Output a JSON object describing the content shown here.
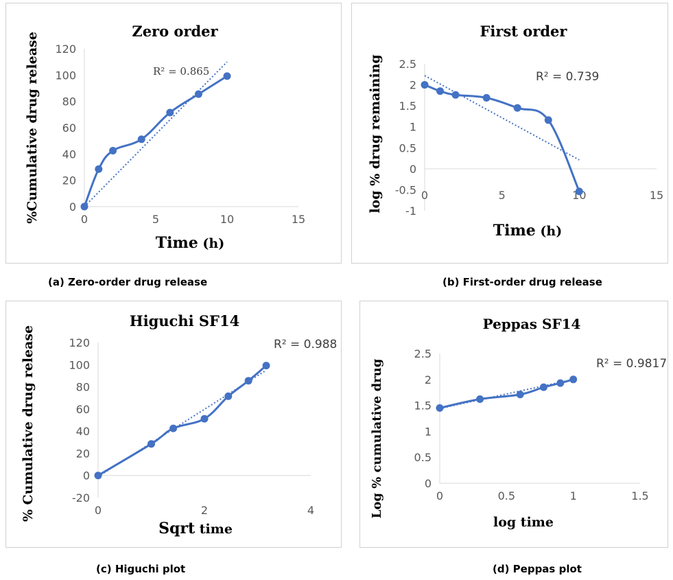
{
  "colors": {
    "series": "#4472c4",
    "axis": "#d9d9d9",
    "text": "#595959"
  },
  "chart_data": [
    {
      "type": "line",
      "title": "Zero order",
      "xlabel": {
        "main": "Time",
        "unit": " (h)"
      },
      "ylabel": "%Cumulative drug release",
      "xlim": [
        0,
        15
      ],
      "ylim": [
        0,
        120
      ],
      "xticks": [
        "0",
        "5",
        "10",
        "15"
      ],
      "yticks": [
        "0",
        "20",
        "40",
        "60",
        "80",
        "100",
        "120"
      ],
      "x": [
        0,
        1,
        2,
        4,
        6,
        8,
        10
      ],
      "y": [
        0,
        28.5,
        42.5,
        51.2,
        71.5,
        85.5,
        99.2
      ],
      "trendline": {
        "x": [
          0,
          10
        ],
        "y": [
          0,
          110
        ]
      },
      "r2_label": "R² = 0.865",
      "caption": "(a) Zero-order drug release"
    },
    {
      "type": "line",
      "title": "First order",
      "xlabel": {
        "main": "Time",
        "unit": " (h)"
      },
      "ylabel": "log % drug remaining",
      "xlim": [
        0,
        15
      ],
      "ylim": [
        -1,
        2.5
      ],
      "xticks": [
        "0",
        "5",
        "10",
        "15"
      ],
      "yticks": [
        "-1",
        "-0.5",
        "0",
        "0.5",
        "1",
        "1.5",
        "2",
        "2.5"
      ],
      "x": [
        0,
        1,
        2,
        4,
        6,
        8,
        10
      ],
      "y": [
        2.0,
        1.85,
        1.76,
        1.69,
        1.45,
        1.16,
        -0.54
      ],
      "trendline": {
        "x": [
          0,
          10
        ],
        "y": [
          2.22,
          0.21
        ]
      },
      "r2_label": "R² = 0.739",
      "caption": "(b) First-order drug release"
    },
    {
      "type": "line",
      "title": "Higuchi SF14",
      "xlabel": {
        "main": "Sqrt",
        "unit": " time"
      },
      "ylabel": "% Cumulative drug release",
      "xlim": [
        0,
        4
      ],
      "ylim": [
        -20,
        120
      ],
      "xticks": [
        "0",
        "2",
        "4"
      ],
      "yticks": [
        "-20",
        "0",
        "20",
        "40",
        "60",
        "80",
        "100",
        "120"
      ],
      "x": [
        0,
        1,
        1.414,
        2,
        2.449,
        2.828,
        3.162
      ],
      "y": [
        0,
        28.5,
        42.5,
        51.2,
        71.5,
        85.5,
        99.2
      ],
      "trendline": {
        "x": [
          0,
          3.162
        ],
        "y": [
          -1,
          95
        ]
      },
      "r2_label": "R² = 0.988",
      "caption": "(c) Higuchi plot"
    },
    {
      "type": "line",
      "title": "Peppas SF14",
      "xlabel": {
        "main": "log time",
        "unit": ""
      },
      "ylabel": "Log % cumulative drug",
      "xlim": [
        0,
        1.5
      ],
      "ylim": [
        0,
        2.5
      ],
      "xticks": [
        "0",
        "0.5",
        "1",
        "1.5"
      ],
      "yticks": [
        "0",
        "0.5",
        "1",
        "1.5",
        "2",
        "2.5"
      ],
      "x": [
        0,
        0.301,
        0.602,
        0.778,
        0.903,
        1.0
      ],
      "y": [
        1.45,
        1.62,
        1.71,
        1.85,
        1.93,
        2.0
      ],
      "trendline": {
        "x": [
          0,
          1.0
        ],
        "y": [
          1.44,
          2.0
        ]
      },
      "r2_label": "R² = 0.9817",
      "caption": "(d) Peppas plot"
    }
  ]
}
